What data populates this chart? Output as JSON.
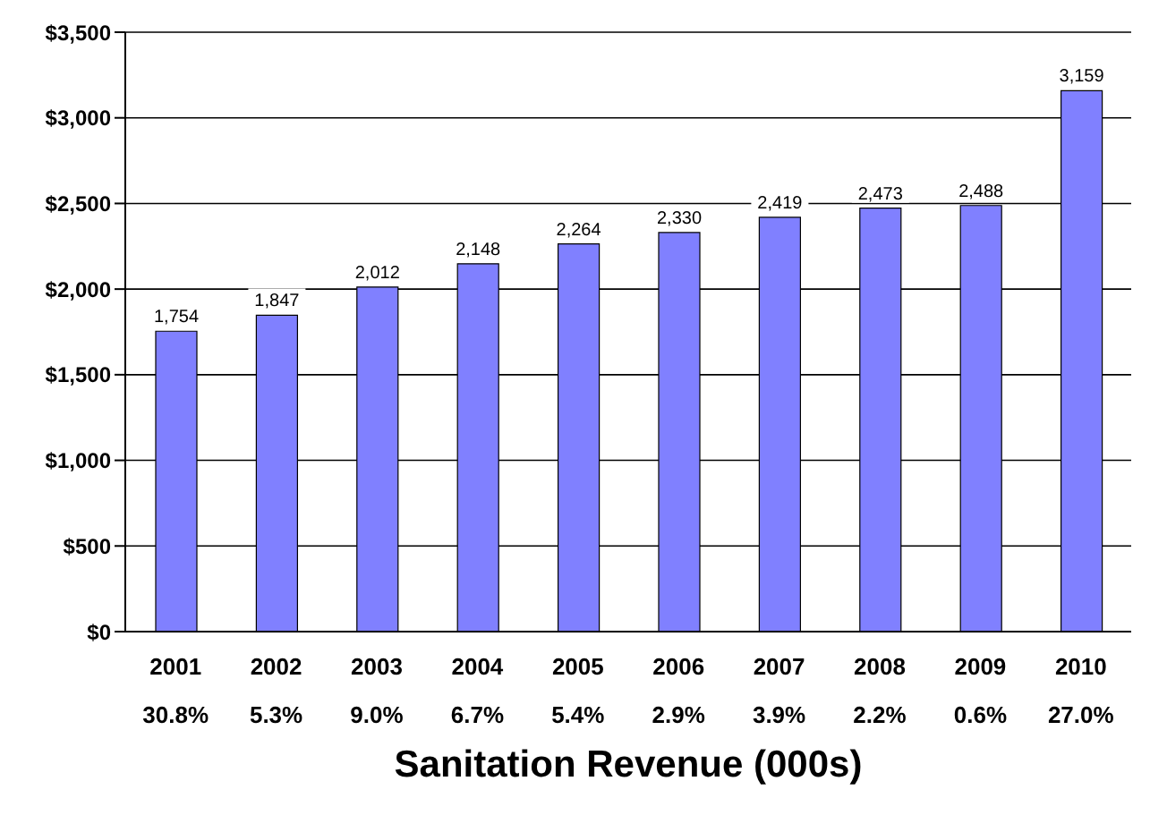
{
  "chart_data": {
    "type": "bar",
    "title": "Sanitation Revenue (000s)",
    "categories": [
      "2001",
      "2002",
      "2003",
      "2004",
      "2005",
      "2006",
      "2007",
      "2008",
      "2009",
      "2010"
    ],
    "values": [
      1754,
      1847,
      2012,
      2148,
      2264,
      2330,
      2419,
      2473,
      2488,
      3159
    ],
    "value_labels": [
      "1,754",
      "1,847",
      "2,012",
      "2,148",
      "2,264",
      "2,330",
      "2,419",
      "2,473",
      "2,488",
      "3,159"
    ],
    "color": "#8080ff",
    "ylim": [
      0,
      3500
    ],
    "yticks": [
      {
        "value": 0,
        "label": "$0"
      },
      {
        "value": 500,
        "label": "$500"
      },
      {
        "value": 1000,
        "label": "$1,000"
      },
      {
        "value": 1500,
        "label": "$1,500"
      },
      {
        "value": 2000,
        "label": "$2,000"
      },
      {
        "value": 2500,
        "label": "$2,500"
      },
      {
        "value": 3000,
        "label": "$3,000"
      },
      {
        "value": 3500,
        "label": "$3,500"
      }
    ],
    "grid": "y",
    "annotations": [
      "30.8%",
      "5.3%",
      "9.0%",
      "6.7%",
      "5.4%",
      "2.9%",
      "3.9%",
      "2.2%",
      "0.6%",
      "27.0%"
    ]
  }
}
